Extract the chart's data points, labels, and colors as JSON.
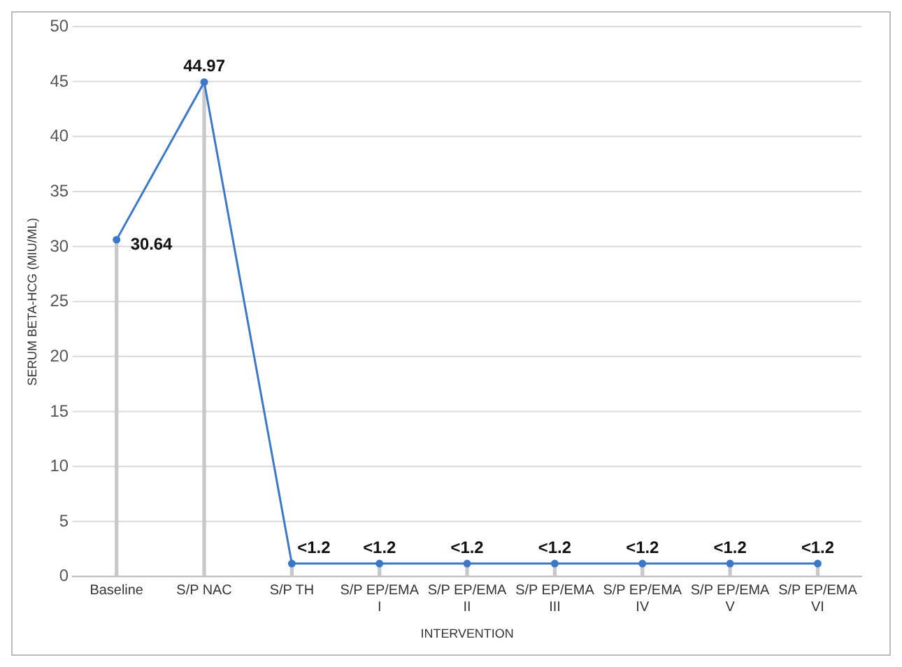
{
  "chart_data": {
    "type": "line",
    "xlabel": "INTERVENTION",
    "ylabel": "SERUM BETA-HCG (MIU/ML)",
    "categories": [
      "Baseline",
      "S/P NAC",
      "S/P TH",
      "S/P EP/EMA I",
      "S/P EP/EMA II",
      "S/P EP/EMA III",
      "S/P EP/EMA IV",
      "S/P EP/EMA V",
      "S/P EP/EMA VI"
    ],
    "series": [
      {
        "type": "bar",
        "color": "#c8c8c8",
        "values": [
          30.6,
          45,
          1.2,
          1.2,
          1.2,
          1.2,
          1.2,
          1.2,
          1.2
        ]
      },
      {
        "color": "#3b78c9",
        "values": [
          30.64,
          44.97,
          1.2,
          1.2,
          1.2,
          1.2,
          1.2,
          1.2,
          1.2
        ],
        "value_labels": [
          "30.64",
          "44.97",
          "<1.2",
          "<1.2",
          "<1.2",
          "<1.2",
          "<1.2",
          "<1.2",
          "<1.2"
        ]
      }
    ],
    "ylim": [
      0,
      50
    ],
    "yticks": [
      0,
      5,
      10,
      15,
      20,
      25,
      30,
      35,
      40,
      45,
      50
    ],
    "grid": "y",
    "legend": false,
    "marker": "circle",
    "line_style": "solid"
  }
}
